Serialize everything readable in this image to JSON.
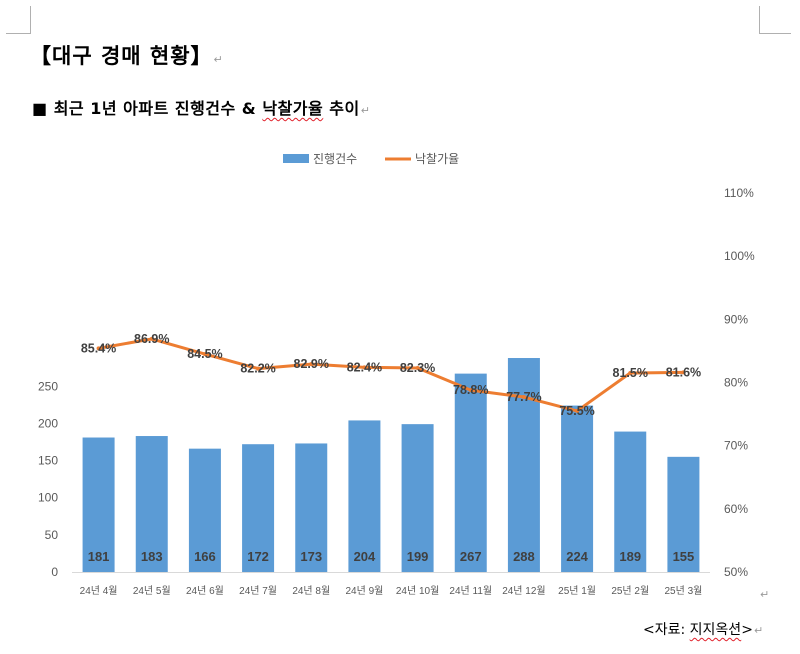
{
  "document": {
    "title": "【대구 경매 현황】",
    "subtitle_bullet": "■",
    "subtitle_prefix": " 최근 1년 아파트 진행건수 & ",
    "subtitle_marked": "낙찰가율",
    "subtitle_suffix": " 추이",
    "paragraph_mark": "↵",
    "source_prefix": "<자료: ",
    "source_name": "지지옥션",
    "source_suffix": ">"
  },
  "chart_data": {
    "type": "bar",
    "categories": [
      "24년 4월",
      "24년 5월",
      "24년 6월",
      "24년 7월",
      "24년 8월",
      "24년 9월",
      "24년 10월",
      "24년 11월",
      "24년 12월",
      "25년 1월",
      "25년 2월",
      "25년 3월"
    ],
    "series": [
      {
        "name": "진행건수",
        "type": "bar",
        "axis": "left",
        "color": "#5b9bd5",
        "values": [
          181,
          183,
          166,
          172,
          173,
          204,
          199,
          267,
          288,
          224,
          189,
          155
        ],
        "labels": [
          "181",
          "183",
          "166",
          "172",
          "173",
          "204",
          "199",
          "267",
          "288",
          "224",
          "189",
          "155"
        ]
      },
      {
        "name": "낙찰가율",
        "type": "line",
        "axis": "right",
        "color": "#ed7d31",
        "values": [
          85.4,
          86.9,
          84.5,
          82.2,
          82.9,
          82.4,
          82.3,
          78.8,
          77.7,
          75.5,
          81.5,
          81.6
        ],
        "labels": [
          "85.4%",
          "86.9%",
          "84.5%",
          "82.2%",
          "82.9%",
          "82.4%",
          "82.3%",
          "78.8%",
          "77.7%",
          "75.5%",
          "81.5%",
          "81.6%"
        ]
      }
    ],
    "y_left": {
      "range": [
        0,
        290
      ],
      "ticks": [
        "0",
        "50",
        "100",
        "150",
        "200",
        "250"
      ],
      "tick_values": [
        0,
        50,
        100,
        150,
        200,
        250
      ]
    },
    "y_right": {
      "range": [
        50,
        117
      ],
      "ticks": [
        "50%",
        "60%",
        "70%",
        "80%",
        "90%",
        "100%",
        "110%"
      ],
      "tick_values": [
        50,
        60,
        70,
        80,
        90,
        100,
        110
      ]
    },
    "legend_position": "top",
    "grid": false
  }
}
